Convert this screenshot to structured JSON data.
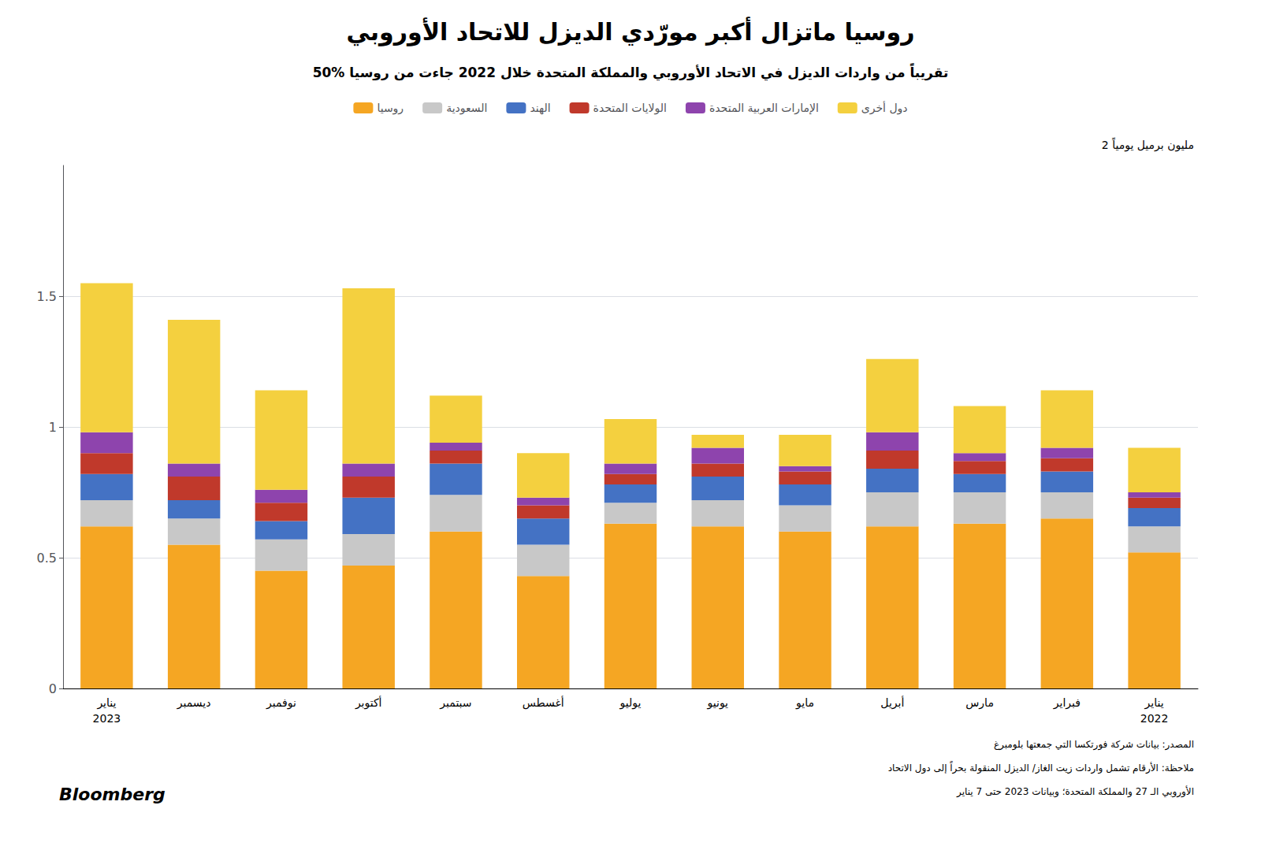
{
  "chart_data": {
    "type": "bar",
    "title": "روسيا ماتزال أكبر مورّدي الديزل للاتحاد الأوروبي",
    "subtitle": "50% تقريباً من واردات الديزل في الاتحاد الأوروبي والمملكة المتحدة خلال 2022 جاءت من روسيا",
    "ylabel": "2 مليون برميل يومياً",
    "annotations": [
      "المصدر: بيانات شركة فورتكسا التي جمعتها بلومبرغ",
      "ملاحظة: الأرقام تشمل واردات زيت الغاز/ الديزل المنقولة بحراً إلى دول الاتحاد",
      "الأوروبي الـ 27 والمملكة المتحدة؛ وبيانات 2023 حتى 7 يناير",
      "Bloomberg"
    ],
    "categories": [
      "يناير\n2022",
      "فبراير",
      "مارس",
      "أبريل",
      "مايو",
      "يونيو",
      "يوليو",
      "أغسطس",
      "سبتمبر",
      "أكتوبر",
      "نوفمبر",
      "ديسمبر",
      "يناير\n2023"
    ],
    "series": [
      {
        "name": "روسيا",
        "color": "#F5A623",
        "values": [
          0.52,
          0.65,
          0.63,
          0.62,
          0.6,
          0.62,
          0.63,
          0.43,
          0.6,
          0.47,
          0.45,
          0.55,
          0.62
        ]
      },
      {
        "name": "السعودية",
        "color": "#C8C8C8",
        "values": [
          0.1,
          0.1,
          0.12,
          0.13,
          0.1,
          0.1,
          0.08,
          0.12,
          0.14,
          0.12,
          0.12,
          0.1,
          0.1
        ]
      },
      {
        "name": "الهند",
        "color": "#4472C4",
        "values": [
          0.07,
          0.08,
          0.07,
          0.09,
          0.08,
          0.09,
          0.07,
          0.1,
          0.12,
          0.14,
          0.07,
          0.07,
          0.1
        ]
      },
      {
        "name": "الولايات المتحدة",
        "color": "#C0392B",
        "values": [
          0.04,
          0.05,
          0.05,
          0.07,
          0.05,
          0.05,
          0.04,
          0.05,
          0.05,
          0.08,
          0.07,
          0.09,
          0.08
        ]
      },
      {
        "name": "الإمارات العربية المتحدة",
        "color": "#8E44AD",
        "values": [
          0.02,
          0.04,
          0.03,
          0.07,
          0.02,
          0.06,
          0.04,
          0.03,
          0.03,
          0.05,
          0.05,
          0.05,
          0.08
        ]
      },
      {
        "name": "دول أخرى",
        "color": "#F4D03F",
        "values": [
          0.17,
          0.22,
          0.18,
          0.28,
          0.12,
          0.05,
          0.17,
          0.17,
          0.18,
          0.67,
          0.38,
          0.55,
          0.57
        ]
      }
    ],
    "stacked": true,
    "ylim": [
      0,
      2.0
    ],
    "yticks": [
      0,
      0.5,
      1,
      1.5
    ],
    "grid": true,
    "legend": "top"
  }
}
